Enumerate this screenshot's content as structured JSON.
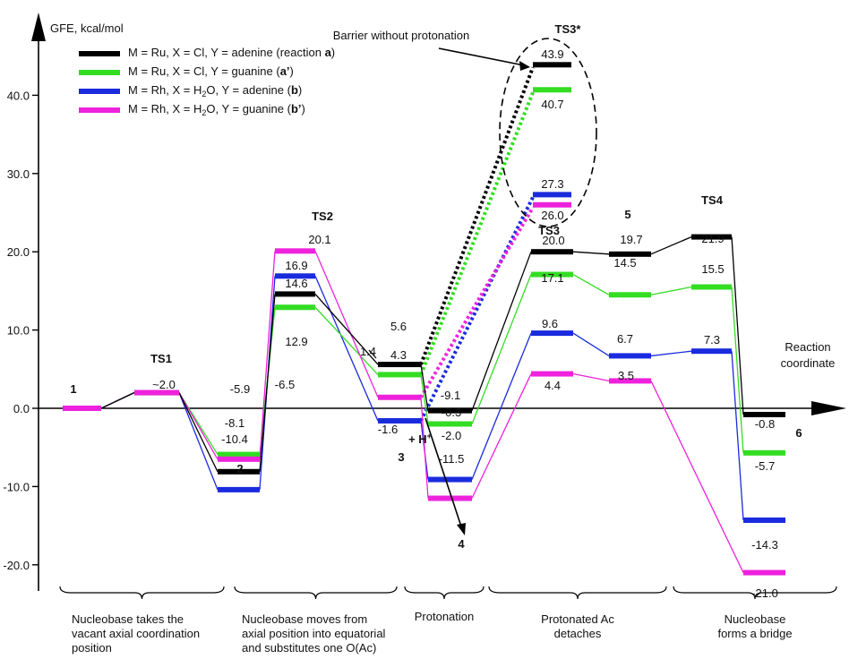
{
  "chart_data": {
    "type": "line",
    "title": "",
    "ylabel": "GFE, kcal/mol",
    "xlabel": "Reaction coordinate",
    "ylim": [
      -22,
      47
    ],
    "yticks": [
      "40.0",
      "30.0",
      "20.0",
      "10.0",
      "0.0",
      "-10.0",
      "-20.0"
    ],
    "ytick_values": [
      40,
      30,
      20,
      10,
      0,
      -10,
      -20
    ],
    "colors": {
      "black": "#000000",
      "green": "#33dd22",
      "blue": "#1a2bdd",
      "magenta": "#ee22dd"
    },
    "legend": [
      {
        "key": "black",
        "parts": [
          [
            "M = Ru, X = Cl, Y = adenine (reaction ",
            "n"
          ],
          [
            "a",
            "b"
          ],
          [
            ")",
            "n"
          ]
        ]
      },
      {
        "key": "green",
        "parts": [
          [
            "M = Ru, X = Cl, Y = guanine (",
            "n"
          ],
          [
            "a’",
            "b"
          ],
          [
            ")",
            "n"
          ]
        ]
      },
      {
        "key": "blue",
        "parts": [
          [
            "M = Rh, X = H",
            "n"
          ],
          [
            "2",
            "sub"
          ],
          [
            "O, Y = adenine (",
            "n"
          ],
          [
            "b",
            "b"
          ],
          [
            ")",
            "n"
          ]
        ]
      },
      {
        "key": "magenta",
        "parts": [
          [
            "M = Rh, X = H",
            "n"
          ],
          [
            "2",
            "sub"
          ],
          [
            "O, Y = guanine (",
            "n"
          ],
          [
            "b’",
            "b"
          ],
          [
            ")",
            "n"
          ]
        ]
      }
    ],
    "stationary_points": [
      "1",
      "TS1",
      "2",
      "TS2",
      "3",
      "4",
      "TS3",
      "5",
      "TS4",
      "6",
      "TS3*"
    ],
    "series": [
      {
        "key": "black",
        "name": "M = Ru, X = Cl, Y = adenine (reaction a)",
        "values": [
          0.0,
          2.0,
          -8.1,
          14.6,
          5.6,
          -0.3,
          20.0,
          19.7,
          21.9,
          -0.8
        ],
        "barrier_without_protonation": 43.9,
        "labels": [
          "",
          "~2.0",
          "-8.1",
          "14.6",
          "5.6",
          "-0.3",
          "20.0",
          "19.7",
          "21.9",
          "-0.8"
        ],
        "barrier_label": "43.9"
      },
      {
        "key": "green",
        "name": "M = Ru, X = Cl, Y = guanine (a’)",
        "values": [
          0.0,
          2.0,
          -5.9,
          12.9,
          4.3,
          -2.0,
          17.1,
          14.5,
          15.5,
          -5.7
        ],
        "barrier_without_protonation": 40.7,
        "labels": [
          "",
          "",
          "-5.9",
          "12.9",
          "4.3",
          "-2.0",
          "17.1",
          "14.5",
          "15.5",
          "-5.7"
        ],
        "barrier_label": "40.7"
      },
      {
        "key": "blue",
        "name": "M = Rh, X = H2O, Y = adenine (b)",
        "values": [
          0.0,
          2.0,
          -10.4,
          16.9,
          -1.6,
          -9.1,
          9.6,
          6.7,
          7.3,
          -14.3
        ],
        "barrier_without_protonation": 27.3,
        "labels": [
          "",
          "",
          "-10.4",
          "16.9",
          "-1.6",
          "-9.1",
          "9.6",
          "6.7",
          "7.3",
          "-14.3"
        ],
        "barrier_label": "27.3"
      },
      {
        "key": "magenta",
        "name": "M = Rh, X = H2O, Y = guanine (b’)",
        "values": [
          0.0,
          2.0,
          -6.5,
          20.1,
          1.4,
          -11.5,
          4.4,
          3.5,
          null,
          -21.0
        ],
        "barrier_without_protonation": 26.0,
        "labels": [
          "",
          "",
          "-6.5",
          "20.1",
          "1.4",
          "-11.5",
          "4.4",
          "3.5",
          "",
          "-21.0"
        ],
        "barrier_label": "26.0"
      }
    ],
    "annotations": {
      "barrier": "Barrier without protonation",
      "protonation_reagent": "+ H",
      "protonation_sup": "+"
    },
    "phases": [
      {
        "lines": [
          "Nucleobase takes the",
          "vacant axial coordination",
          "position"
        ]
      },
      {
        "lines": [
          "Nucleobase moves from",
          "axial position into equatorial",
          "and substitutes one O(Ac)"
        ]
      },
      {
        "lines": [
          "Protonation"
        ]
      },
      {
        "lines": [
          "Protonated Ac",
          "detaches"
        ]
      },
      {
        "lines": [
          "Nucleobase",
          "forms a bridge"
        ]
      }
    ]
  }
}
